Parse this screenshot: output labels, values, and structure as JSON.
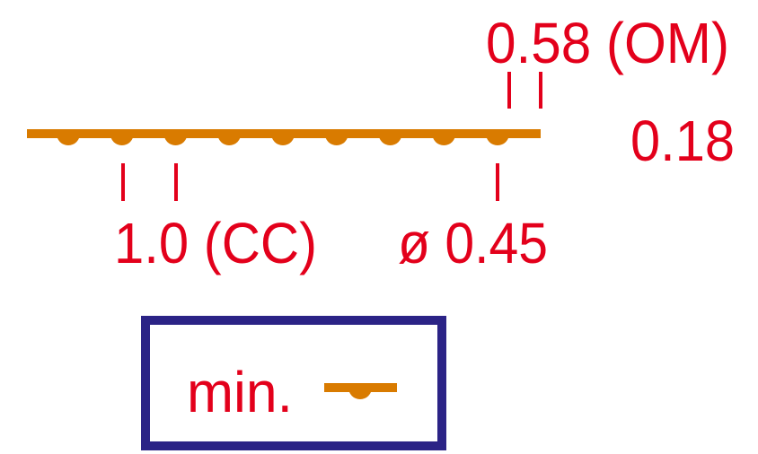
{
  "colors": {
    "strip": "#d97b00",
    "text": "#e3001b",
    "frame": "#2b2386",
    "background": "#ffffff"
  },
  "labels": {
    "overall_margin": "0.58 (OM)",
    "thickness": "0.18",
    "pitch": "1.0 (CC)",
    "diameter": "ø 0.45"
  },
  "legend": {
    "text": "min.",
    "symbol": "ball-on-strip-icon"
  },
  "strip": {
    "ball_count": 9
  }
}
